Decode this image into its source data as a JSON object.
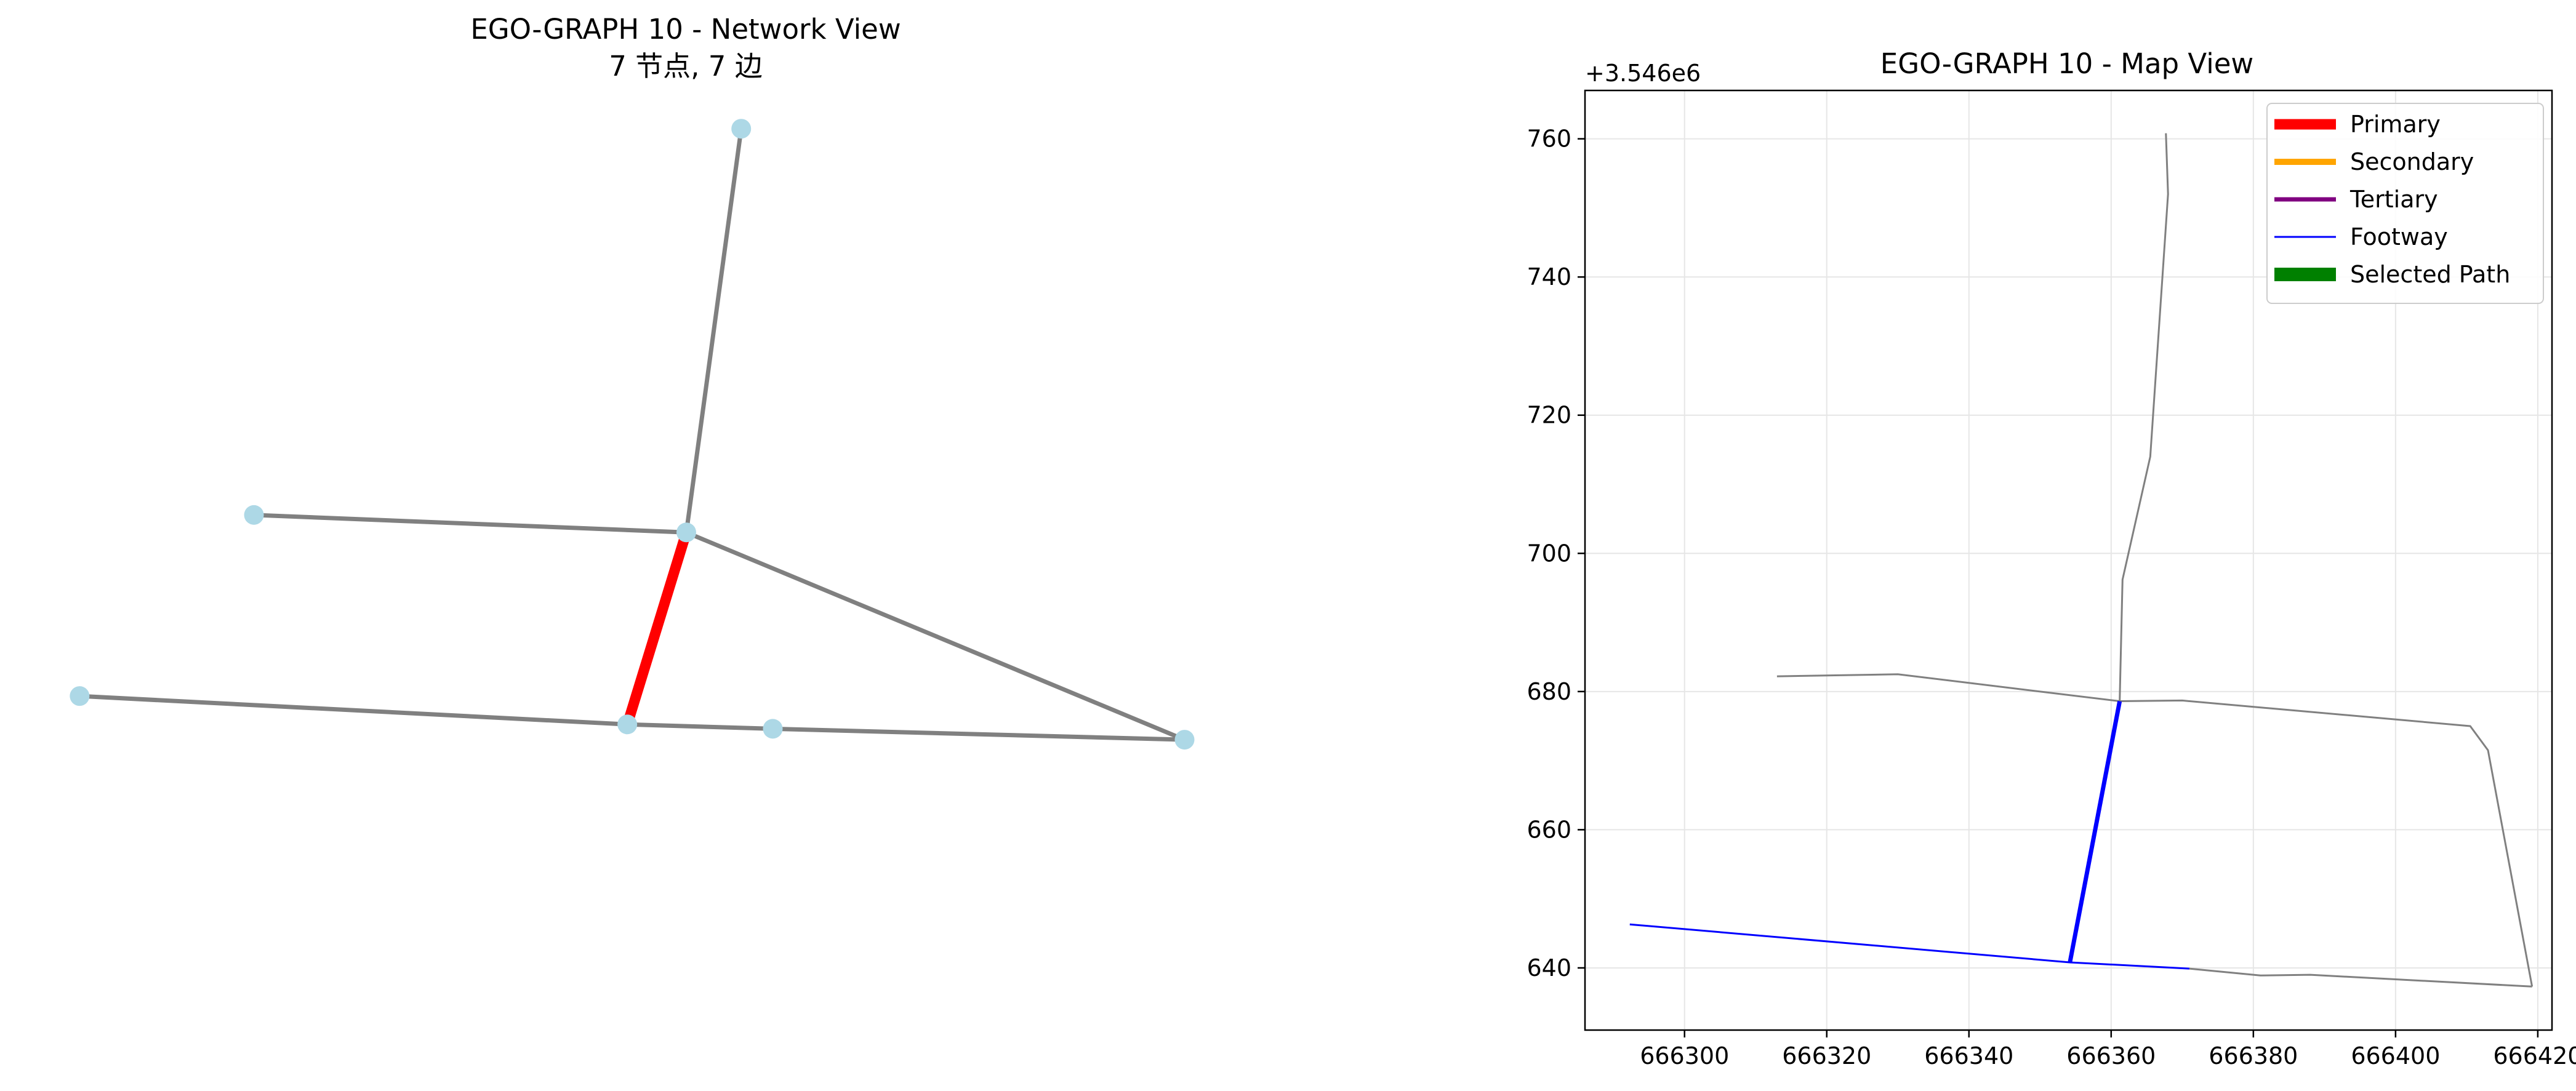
{
  "chart_data": [
    {
      "type": "network",
      "title": "EGO-GRAPH 10 - Network View",
      "subtitle": "7 节点, 7 边",
      "nodes": [
        {
          "id": "n0",
          "x": 0.54,
          "y": 0.118
        },
        {
          "id": "n1",
          "x": 0.185,
          "y": 0.472
        },
        {
          "id": "n2",
          "x": 0.5,
          "y": 0.488
        },
        {
          "id": "n3",
          "x": 0.058,
          "y": 0.638
        },
        {
          "id": "n4",
          "x": 0.457,
          "y": 0.664
        },
        {
          "id": "n5",
          "x": 0.563,
          "y": 0.668
        },
        {
          "id": "n6",
          "x": 0.863,
          "y": 0.678
        }
      ],
      "edges": [
        {
          "from": "n0",
          "to": "n2",
          "highlight": false
        },
        {
          "from": "n1",
          "to": "n2",
          "highlight": false
        },
        {
          "from": "n2",
          "to": "n4",
          "highlight": true
        },
        {
          "from": "n2",
          "to": "n6",
          "highlight": false
        },
        {
          "from": "n3",
          "to": "n4",
          "highlight": false
        },
        {
          "from": "n4",
          "to": "n5",
          "highlight": false
        },
        {
          "from": "n5",
          "to": "n6",
          "highlight": false
        }
      ],
      "colors": {
        "node": "#add8e6",
        "edge": "#808080",
        "highlight": "#ff0000"
      }
    },
    {
      "type": "line",
      "title": "EGO-GRAPH 10 - Map View",
      "y_offset_label": "+3.546e6",
      "xlim": [
        666286,
        666422
      ],
      "ylim": [
        631,
        767
      ],
      "xticks": [
        "666300",
        "666320",
        "666340",
        "666360",
        "666380",
        "666400",
        "666420"
      ],
      "xtick_values": [
        666300,
        666320,
        666340,
        666360,
        666380,
        666400,
        666420
      ],
      "yticks": [
        "640",
        "660",
        "680",
        "700",
        "720",
        "740",
        "760"
      ],
      "ytick_values": [
        640,
        660,
        680,
        700,
        720,
        740,
        760
      ],
      "grid": true,
      "legend_position": "upper right",
      "legend": [
        {
          "label": "Primary",
          "color": "#ff0000"
        },
        {
          "label": "Secondary",
          "color": "#ffa500"
        },
        {
          "label": "Tertiary",
          "color": "#800080"
        },
        {
          "label": "Footway",
          "color": "#0000ff"
        },
        {
          "label": "Selected Path",
          "color": "#008000"
        }
      ],
      "series": [
        {
          "class": "other",
          "color": "#808080",
          "points": [
            [
              666367.7,
              760.8
            ],
            [
              666368,
              752
            ],
            [
              666365.5,
              714
            ],
            [
              666361.6,
              696.2
            ],
            [
              666361.2,
              678.6
            ]
          ]
        },
        {
          "class": "other",
          "color": "#808080",
          "points": [
            [
              666313,
              682.2
            ],
            [
              666330,
              682.5
            ],
            [
              666361.2,
              678.6
            ],
            [
              666370,
              678.7
            ],
            [
              666410.5,
              675
            ],
            [
              666413,
              671.5
            ],
            [
              666419.2,
              637.3
            ]
          ]
        },
        {
          "class": "other",
          "color": "#808080",
          "points": [
            [
              666371,
              639.9
            ],
            [
              666381,
              638.9
            ],
            [
              666388,
              639
            ],
            [
              666419.2,
              637.3
            ]
          ]
        },
        {
          "class": "footway",
          "color": "#0000ff",
          "points": [
            [
              666292.3,
              646.3
            ],
            [
              666354.2,
              640.8
            ],
            [
              666371,
              639.9
            ]
          ]
        },
        {
          "class": "footway-selected",
          "color": "#0000ff",
          "points": [
            [
              666354.2,
              640.8
            ],
            [
              666361.2,
              678.6
            ]
          ]
        }
      ]
    }
  ]
}
